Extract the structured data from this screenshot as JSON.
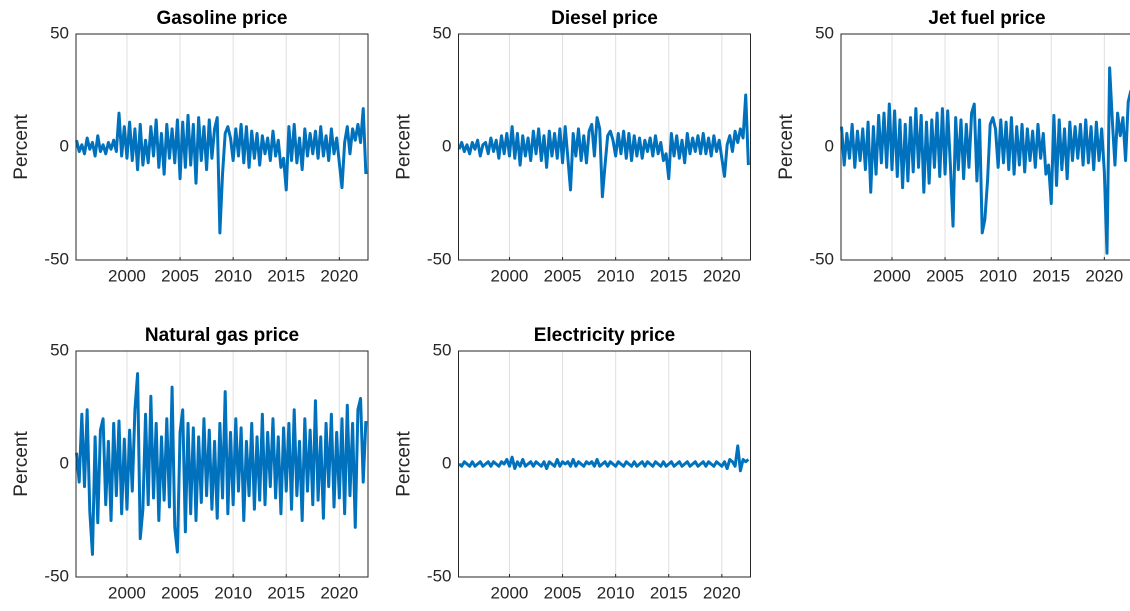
{
  "chart_data": [
    {
      "type": "line",
      "title": "Gasoline price",
      "ylabel": "Percent",
      "color": "#0072bd",
      "grid": "x",
      "xlim": [
        1995.2,
        2022.7
      ],
      "ylim": [
        -50,
        50
      ],
      "xticks": [
        2000,
        2005,
        2010,
        2015,
        2020
      ],
      "yticks": [
        -50,
        0,
        50
      ],
      "x": [
        1995.25,
        1995.5,
        1995.75,
        1996,
        1996.25,
        1996.5,
        1996.75,
        1997,
        1997.25,
        1997.5,
        1997.75,
        1998,
        1998.25,
        1998.5,
        1998.75,
        1999,
        1999.25,
        1999.5,
        1999.75,
        2000,
        2000.25,
        2000.5,
        2000.75,
        2001,
        2001.25,
        2001.5,
        2001.75,
        2002,
        2002.25,
        2002.5,
        2002.75,
        2003,
        2003.25,
        2003.5,
        2003.75,
        2004,
        2004.25,
        2004.5,
        2004.75,
        2005,
        2005.25,
        2005.5,
        2005.75,
        2006,
        2006.25,
        2006.5,
        2006.75,
        2007,
        2007.25,
        2007.5,
        2007.75,
        2008,
        2008.25,
        2008.5,
        2008.75,
        2009,
        2009.25,
        2009.5,
        2009.75,
        2010,
        2010.25,
        2010.5,
        2010.75,
        2011,
        2011.25,
        2011.5,
        2011.75,
        2012,
        2012.25,
        2012.5,
        2012.75,
        2013,
        2013.25,
        2013.5,
        2013.75,
        2014,
        2014.25,
        2014.5,
        2014.75,
        2015,
        2015.25,
        2015.5,
        2015.75,
        2016,
        2016.25,
        2016.5,
        2016.75,
        2017,
        2017.25,
        2017.5,
        2017.75,
        2018,
        2018.25,
        2018.5,
        2018.75,
        2019,
        2019.25,
        2019.5,
        2019.75,
        2020,
        2020.25,
        2020.5,
        2020.75,
        2021,
        2021.25,
        2021.5,
        2021.75,
        2022,
        2022.25,
        2022.5
      ],
      "values": [
        3,
        -2,
        1,
        -3,
        4,
        -1,
        2,
        -4,
        5,
        -2,
        1,
        -3,
        2,
        -1,
        3,
        -2,
        15,
        -4,
        9,
        -5,
        11,
        -6,
        8,
        -10,
        10,
        -8,
        3,
        -7,
        9,
        -4,
        12,
        -9,
        6,
        -12,
        10,
        -5,
        8,
        -7,
        12,
        -14,
        11,
        -9,
        14,
        -8,
        10,
        -16,
        13,
        -6,
        9,
        -10,
        12,
        -5,
        8,
        13,
        -38,
        -12,
        6,
        9,
        4,
        -6,
        8,
        -4,
        10,
        -7,
        9,
        -9,
        7,
        -5,
        6,
        -8,
        5,
        -3,
        4,
        -6,
        7,
        -4,
        3,
        -9,
        -5,
        -19,
        9,
        -6,
        10,
        -7,
        4,
        -10,
        8,
        -4,
        6,
        -3,
        7,
        -5,
        9,
        -4,
        5,
        -6,
        8,
        -3,
        4,
        -7,
        -18,
        2,
        9,
        -3,
        8,
        3,
        10,
        2,
        17,
        -12
      ]
    },
    {
      "type": "line",
      "title": "Diesel price",
      "ylabel": "Percent",
      "color": "#0072bd",
      "grid": "x",
      "xlim": [
        1995.2,
        2022.7
      ],
      "ylim": [
        -50,
        50
      ],
      "xticks": [
        2000,
        2005,
        2010,
        2015,
        2020
      ],
      "yticks": [
        -50,
        0,
        50
      ],
      "x": [
        1995.25,
        1995.5,
        1995.75,
        1996,
        1996.25,
        1996.5,
        1996.75,
        1997,
        1997.25,
        1997.5,
        1997.75,
        1998,
        1998.25,
        1998.5,
        1998.75,
        1999,
        1999.25,
        1999.5,
        1999.75,
        2000,
        2000.25,
        2000.5,
        2000.75,
        2001,
        2001.25,
        2001.5,
        2001.75,
        2002,
        2002.25,
        2002.5,
        2002.75,
        2003,
        2003.25,
        2003.5,
        2003.75,
        2004,
        2004.25,
        2004.5,
        2004.75,
        2005,
        2005.25,
        2005.5,
        2005.75,
        2006,
        2006.25,
        2006.5,
        2006.75,
        2007,
        2007.25,
        2007.5,
        2007.75,
        2008,
        2008.25,
        2008.5,
        2008.75,
        2009,
        2009.25,
        2009.5,
        2009.75,
        2010,
        2010.25,
        2010.5,
        2010.75,
        2011,
        2011.25,
        2011.5,
        2011.75,
        2012,
        2012.25,
        2012.5,
        2012.75,
        2013,
        2013.25,
        2013.5,
        2013.75,
        2014,
        2014.25,
        2014.5,
        2014.75,
        2015,
        2015.25,
        2015.5,
        2015.75,
        2016,
        2016.25,
        2016.5,
        2016.75,
        2017,
        2017.25,
        2017.5,
        2017.75,
        2018,
        2018.25,
        2018.5,
        2018.75,
        2019,
        2019.25,
        2019.5,
        2019.75,
        2020,
        2020.25,
        2020.5,
        2020.75,
        2021,
        2021.25,
        2021.5,
        2021.75,
        2022,
        2022.25,
        2022.5
      ],
      "values": [
        -1,
        2,
        -2,
        1,
        -3,
        2,
        -1,
        3,
        -4,
        1,
        2,
        -3,
        4,
        -2,
        3,
        -5,
        5,
        -3,
        6,
        -4,
        9,
        -5,
        6,
        -8,
        5,
        -4,
        4,
        -6,
        7,
        -3,
        8,
        -6,
        5,
        -9,
        7,
        -4,
        6,
        -5,
        8,
        -7,
        9,
        -5,
        -19,
        6,
        -4,
        8,
        -6,
        5,
        -7,
        7,
        10,
        -4,
        13,
        8,
        -22,
        -8,
        5,
        7,
        3,
        -4,
        6,
        -3,
        7,
        -5,
        6,
        -6,
        5,
        -4,
        4,
        -5,
        3,
        -2,
        4,
        -4,
        5,
        -3,
        2,
        -6,
        -3,
        -14,
        6,
        -4,
        5,
        -5,
        3,
        -7,
        6,
        -3,
        4,
        -2,
        5,
        -3,
        6,
        -3,
        4,
        -4,
        5,
        -2,
        3,
        -5,
        -13,
        1,
        5,
        -2,
        7,
        2,
        8,
        4,
        23,
        -8
      ]
    },
    {
      "type": "line",
      "title": "Jet fuel price",
      "ylabel": "Percent",
      "color": "#0072bd",
      "grid": "x",
      "xlim": [
        1995.2,
        2022.7
      ],
      "ylim": [
        -50,
        50
      ],
      "xticks": [
        2000,
        2005,
        2010,
        2015,
        2020
      ],
      "yticks": [
        -50,
        0,
        50
      ],
      "x": [
        1995.25,
        1995.5,
        1995.75,
        1996,
        1996.25,
        1996.5,
        1996.75,
        1997,
        1997.25,
        1997.5,
        1997.75,
        1998,
        1998.25,
        1998.5,
        1998.75,
        1999,
        1999.25,
        1999.5,
        1999.75,
        2000,
        2000.25,
        2000.5,
        2000.75,
        2001,
        2001.25,
        2001.5,
        2001.75,
        2002,
        2002.25,
        2002.5,
        2002.75,
        2003,
        2003.25,
        2003.5,
        2003.75,
        2004,
        2004.25,
        2004.5,
        2004.75,
        2005,
        2005.25,
        2005.5,
        2005.75,
        2006,
        2006.25,
        2006.5,
        2006.75,
        2007,
        2007.25,
        2007.5,
        2007.75,
        2008,
        2008.25,
        2008.5,
        2008.75,
        2009,
        2009.25,
        2009.5,
        2009.75,
        2010,
        2010.25,
        2010.5,
        2010.75,
        2011,
        2011.25,
        2011.5,
        2011.75,
        2012,
        2012.25,
        2012.5,
        2012.75,
        2013,
        2013.25,
        2013.5,
        2013.75,
        2014,
        2014.25,
        2014.5,
        2014.75,
        2015,
        2015.25,
        2015.5,
        2015.75,
        2016,
        2016.25,
        2016.5,
        2016.75,
        2017,
        2017.25,
        2017.5,
        2017.75,
        2018,
        2018.25,
        2018.5,
        2018.75,
        2019,
        2019.25,
        2019.5,
        2019.75,
        2020,
        2020.25,
        2020.5,
        2020.75,
        2021,
        2021.25,
        2021.5,
        2021.75,
        2022,
        2022.25,
        2022.5
      ],
      "values": [
        9,
        -8,
        6,
        -5,
        10,
        -9,
        7,
        -6,
        8,
        -10,
        11,
        -20,
        9,
        -12,
        14,
        -7,
        15,
        -9,
        19,
        -10,
        16,
        -13,
        12,
        -18,
        10,
        -15,
        13,
        -11,
        17,
        -9,
        14,
        -20,
        11,
        -16,
        12,
        -9,
        15,
        -13,
        17,
        -12,
        16,
        -8,
        -35,
        13,
        -10,
        12,
        -14,
        10,
        -9,
        15,
        19,
        -15,
        12,
        -38,
        -32,
        -15,
        10,
        13,
        8,
        -9,
        12,
        -7,
        11,
        -10,
        13,
        -12,
        9,
        -8,
        10,
        -11,
        8,
        -6,
        7,
        -9,
        10,
        -5,
        6,
        -12,
        -8,
        -25,
        14,
        -17,
        12,
        -10,
        8,
        -14,
        11,
        -6,
        9,
        -5,
        10,
        -8,
        12,
        -7,
        9,
        -10,
        11,
        -6,
        8,
        -11,
        -47,
        35,
        12,
        -8,
        15,
        5,
        13,
        -6,
        20,
        25
      ]
    },
    {
      "type": "line",
      "title": "Natural gas price",
      "ylabel": "Percent",
      "color": "#0072bd",
      "grid": "x",
      "xlim": [
        1995.2,
        2022.7
      ],
      "ylim": [
        -50,
        50
      ],
      "xticks": [
        2000,
        2005,
        2010,
        2015,
        2020
      ],
      "yticks": [
        -50,
        0,
        50
      ],
      "x": [
        1995.25,
        1995.5,
        1995.75,
        1996,
        1996.25,
        1996.5,
        1996.75,
        1997,
        1997.25,
        1997.5,
        1997.75,
        1998,
        1998.25,
        1998.5,
        1998.75,
        1999,
        1999.25,
        1999.5,
        1999.75,
        2000,
        2000.25,
        2000.5,
        2000.75,
        2001,
        2001.25,
        2001.5,
        2001.75,
        2002,
        2002.25,
        2002.5,
        2002.75,
        2003,
        2003.25,
        2003.5,
        2003.75,
        2004,
        2004.25,
        2004.5,
        2004.75,
        2005,
        2005.25,
        2005.5,
        2005.75,
        2006,
        2006.25,
        2006.5,
        2006.75,
        2007,
        2007.25,
        2007.5,
        2007.75,
        2008,
        2008.25,
        2008.5,
        2008.75,
        2009,
        2009.25,
        2009.5,
        2009.75,
        2010,
        2010.25,
        2010.5,
        2010.75,
        2011,
        2011.25,
        2011.5,
        2011.75,
        2012,
        2012.25,
        2012.5,
        2012.75,
        2013,
        2013.25,
        2013.5,
        2013.75,
        2014,
        2014.25,
        2014.5,
        2014.75,
        2015,
        2015.25,
        2015.5,
        2015.75,
        2016,
        2016.25,
        2016.5,
        2016.75,
        2017,
        2017.25,
        2017.5,
        2017.75,
        2018,
        2018.25,
        2018.5,
        2018.75,
        2019,
        2019.25,
        2019.5,
        2019.75,
        2020,
        2020.25,
        2020.5,
        2020.75,
        2021,
        2021.25,
        2021.5,
        2021.75,
        2022,
        2022.25,
        2022.5
      ],
      "values": [
        5,
        -8,
        22,
        -10,
        24,
        -21,
        -40,
        12,
        -26,
        15,
        20,
        -18,
        10,
        -25,
        18,
        -14,
        19,
        -22,
        11,
        -20,
        15,
        -12,
        24,
        40,
        -33,
        -20,
        22,
        -18,
        30,
        -15,
        18,
        -25,
        12,
        -16,
        20,
        -19,
        34,
        -28,
        -39,
        14,
        24,
        -30,
        18,
        -22,
        16,
        -25,
        12,
        -17,
        20,
        -14,
        15,
        -20,
        10,
        -24,
        18,
        -15,
        32,
        -22,
        14,
        -18,
        20,
        -12,
        16,
        -25,
        10,
        -14,
        18,
        -20,
        12,
        -16,
        22,
        -18,
        14,
        -10,
        20,
        -15,
        12,
        -22,
        16,
        -12,
        18,
        -20,
        24,
        -14,
        10,
        -25,
        20,
        -12,
        15,
        -18,
        28,
        -16,
        12,
        -24,
        18,
        -10,
        22,
        -19,
        14,
        -15,
        20,
        -22,
        26,
        -14,
        18,
        -28,
        24,
        29,
        -8,
        19
      ]
    },
    {
      "type": "line",
      "title": "Electricity price",
      "ylabel": "Percent",
      "color": "#0072bd",
      "grid": "x",
      "xlim": [
        1995.2,
        2022.7
      ],
      "ylim": [
        -50,
        50
      ],
      "xticks": [
        2000,
        2005,
        2010,
        2015,
        2020
      ],
      "yticks": [
        -50,
        0,
        50
      ],
      "x": [
        1995.25,
        1995.5,
        1995.75,
        1996,
        1996.25,
        1996.5,
        1996.75,
        1997,
        1997.25,
        1997.5,
        1997.75,
        1998,
        1998.25,
        1998.5,
        1998.75,
        1999,
        1999.25,
        1999.5,
        1999.75,
        2000,
        2000.25,
        2000.5,
        2000.75,
        2001,
        2001.25,
        2001.5,
        2001.75,
        2002,
        2002.25,
        2002.5,
        2002.75,
        2003,
        2003.25,
        2003.5,
        2003.75,
        2004,
        2004.25,
        2004.5,
        2004.75,
        2005,
        2005.25,
        2005.5,
        2005.75,
        2006,
        2006.25,
        2006.5,
        2006.75,
        2007,
        2007.25,
        2007.5,
        2007.75,
        2008,
        2008.25,
        2008.5,
        2008.75,
        2009,
        2009.25,
        2009.5,
        2009.75,
        2010,
        2010.25,
        2010.5,
        2010.75,
        2011,
        2011.25,
        2011.5,
        2011.75,
        2012,
        2012.25,
        2012.5,
        2012.75,
        2013,
        2013.25,
        2013.5,
        2013.75,
        2014,
        2014.25,
        2014.5,
        2014.75,
        2015,
        2015.25,
        2015.5,
        2015.75,
        2016,
        2016.25,
        2016.5,
        2016.75,
        2017,
        2017.25,
        2017.5,
        2017.75,
        2018,
        2018.25,
        2018.5,
        2018.75,
        2019,
        2019.25,
        2019.5,
        2019.75,
        2020,
        2020.25,
        2020.5,
        2020.75,
        2021,
        2021.25,
        2021.5,
        2021.75,
        2022,
        2022.25,
        2022.5
      ],
      "values": [
        0,
        -1,
        1,
        0,
        -1,
        1,
        -1,
        0,
        1,
        -1,
        0,
        1,
        -1,
        1,
        0,
        -1,
        1,
        0,
        2,
        -1,
        3,
        -2,
        1,
        -1,
        2,
        -1,
        0,
        1,
        -1,
        1,
        0,
        -1,
        1,
        -2,
        1,
        0,
        -1,
        2,
        -1,
        1,
        0,
        1,
        -1,
        2,
        -1,
        1,
        0,
        -1,
        1,
        0,
        1,
        -1,
        2,
        -1,
        0,
        1,
        -1,
        1,
        0,
        -1,
        1,
        0,
        -1,
        1,
        0,
        -1,
        1,
        -1,
        0,
        1,
        -1,
        1,
        0,
        -1,
        1,
        0,
        -1,
        1,
        -1,
        0,
        1,
        -1,
        0,
        1,
        -1,
        0,
        1,
        -1,
        0,
        1,
        -1,
        0,
        1,
        -1,
        1,
        0,
        -1,
        1,
        0,
        -1,
        1,
        -2,
        2,
        1,
        -1,
        8,
        -3,
        2,
        1,
        2
      ]
    }
  ]
}
